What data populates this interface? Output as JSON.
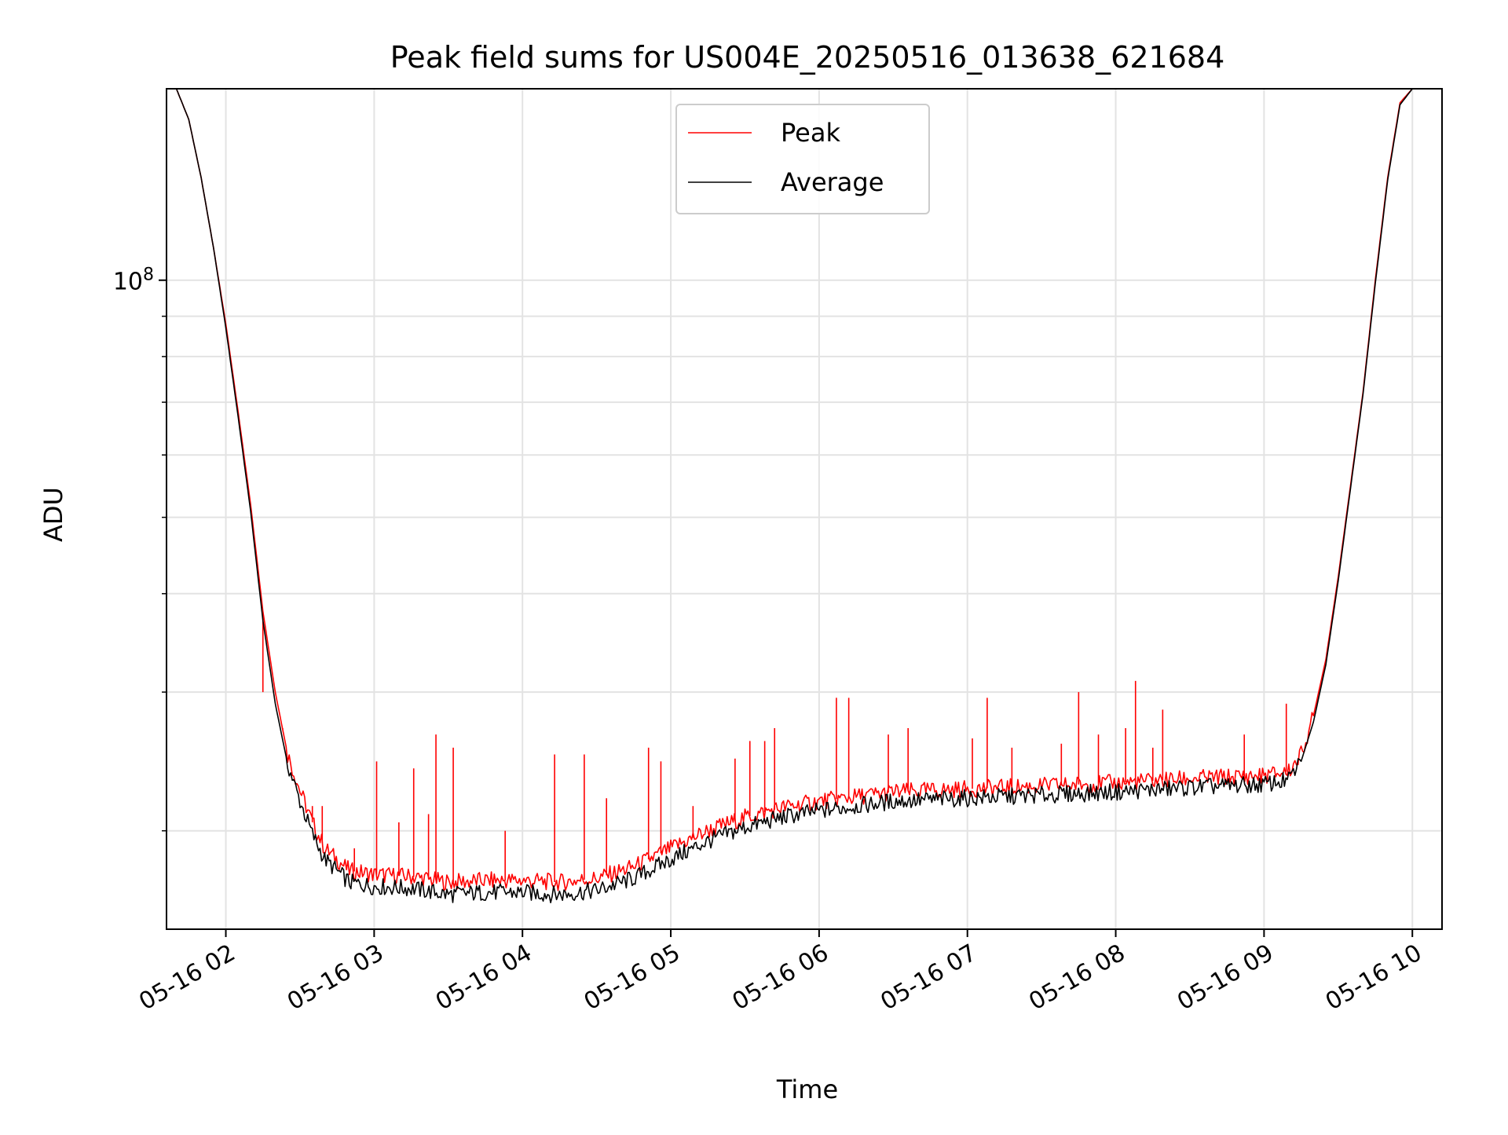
{
  "chart_data": {
    "type": "line",
    "title": "Peak field sums for US004E_20250516_013638_621684",
    "xlabel": "Time",
    "ylabel": "ADU",
    "y_scale": "log",
    "grid": true,
    "legend_position": "top-center",
    "x_range": [
      "2025-05-16 01:36",
      "2025-05-16 10:12"
    ],
    "ylim": [
      15000000,
      175000000
    ],
    "x_ticks": [
      {
        "value": "2025-05-16 02:00",
        "label": "05-16 02"
      },
      {
        "value": "2025-05-16 03:00",
        "label": "05-16 03"
      },
      {
        "value": "2025-05-16 04:00",
        "label": "05-16 04"
      },
      {
        "value": "2025-05-16 05:00",
        "label": "05-16 05"
      },
      {
        "value": "2025-05-16 06:00",
        "label": "05-16 06"
      },
      {
        "value": "2025-05-16 07:00",
        "label": "05-16 07"
      },
      {
        "value": "2025-05-16 08:00",
        "label": "05-16 08"
      },
      {
        "value": "2025-05-16 09:00",
        "label": "05-16 09"
      },
      {
        "value": "2025-05-16 10:00",
        "label": "05-16 10"
      }
    ],
    "y_ticks": [
      {
        "value": 100000000,
        "label": "10",
        "exponent": "8"
      }
    ],
    "y_minor_ticks": [
      20000000,
      30000000,
      40000000,
      50000000,
      60000000,
      70000000,
      80000000,
      90000000
    ],
    "series": [
      {
        "name": "Peak",
        "color": "#ff0000",
        "points": [
          [
            "2025-05-16 01:36",
            175000000
          ],
          [
            "2025-05-16 01:40",
            175000000
          ],
          [
            "2025-05-16 01:45",
            160000000
          ],
          [
            "2025-05-16 01:50",
            135000000
          ],
          [
            "2025-05-16 01:55",
            110000000
          ],
          [
            "2025-05-16 02:00",
            88000000
          ],
          [
            "2025-05-16 02:05",
            68000000
          ],
          [
            "2025-05-16 02:10",
            52000000
          ],
          [
            "2025-05-16 02:15",
            38000000
          ],
          [
            "2025-05-16 02:20",
            30000000
          ],
          [
            "2025-05-16 02:25",
            25000000
          ],
          [
            "2025-05-16 02:30",
            22500000
          ],
          [
            "2025-05-16 02:35",
            20500000
          ],
          [
            "2025-05-16 02:40",
            19000000
          ],
          [
            "2025-05-16 02:50",
            17800000
          ],
          [
            "2025-05-16 03:00",
            17600000
          ],
          [
            "2025-05-16 03:15",
            17500000
          ],
          [
            "2025-05-16 03:30",
            17200000
          ],
          [
            "2025-05-16 03:45",
            17300000
          ],
          [
            "2025-05-16 04:00",
            17300000
          ],
          [
            "2025-05-16 04:15",
            17200000
          ],
          [
            "2025-05-16 04:30",
            17400000
          ],
          [
            "2025-05-16 04:45",
            18000000
          ],
          [
            "2025-05-16 05:00",
            19000000
          ],
          [
            "2025-05-16 05:15",
            20000000
          ],
          [
            "2025-05-16 05:30",
            20800000
          ],
          [
            "2025-05-16 05:45",
            21400000
          ],
          [
            "2025-05-16 06:00",
            21800000
          ],
          [
            "2025-05-16 06:15",
            22100000
          ],
          [
            "2025-05-16 06:30",
            22400000
          ],
          [
            "2025-05-16 06:45",
            22500000
          ],
          [
            "2025-05-16 07:00",
            22600000
          ],
          [
            "2025-05-16 07:30",
            22800000
          ],
          [
            "2025-05-16 08:00",
            23000000
          ],
          [
            "2025-05-16 08:30",
            23300000
          ],
          [
            "2025-05-16 09:00",
            23500000
          ],
          [
            "2025-05-16 09:10",
            23800000
          ],
          [
            "2025-05-16 09:15",
            25000000
          ],
          [
            "2025-05-16 09:20",
            28000000
          ],
          [
            "2025-05-16 09:25",
            33000000
          ],
          [
            "2025-05-16 09:30",
            42000000
          ],
          [
            "2025-05-16 09:35",
            55000000
          ],
          [
            "2025-05-16 09:40",
            72000000
          ],
          [
            "2025-05-16 09:45",
            100000000
          ],
          [
            "2025-05-16 09:50",
            135000000
          ],
          [
            "2025-05-16 09:55",
            168000000
          ],
          [
            "2025-05-16 10:00",
            175000000
          ],
          [
            "2025-05-16 10:12",
            175000000
          ]
        ],
        "spikes": [
          [
            "2025-05-16 02:15",
            30000000
          ],
          [
            "2025-05-16 02:23",
            27000000
          ],
          [
            "2025-05-16 02:35",
            21500000
          ],
          [
            "2025-05-16 02:39",
            21500000
          ],
          [
            "2025-05-16 02:52",
            19000000
          ],
          [
            "2025-05-16 03:01",
            24500000
          ],
          [
            "2025-05-16 03:10",
            20500000
          ],
          [
            "2025-05-16 03:16",
            24000000
          ],
          [
            "2025-05-16 03:22",
            21000000
          ],
          [
            "2025-05-16 03:25",
            26500000
          ],
          [
            "2025-05-16 03:32",
            25500000
          ],
          [
            "2025-05-16 03:53",
            20000000
          ],
          [
            "2025-05-16 04:13",
            25000000
          ],
          [
            "2025-05-16 04:25",
            25000000
          ],
          [
            "2025-05-16 04:34",
            22000000
          ],
          [
            "2025-05-16 04:51",
            25500000
          ],
          [
            "2025-05-16 04:56",
            24500000
          ],
          [
            "2025-05-16 05:09",
            21500000
          ],
          [
            "2025-05-16 05:26",
            24700000
          ],
          [
            "2025-05-16 05:32",
            26000000
          ],
          [
            "2025-05-16 05:38",
            26000000
          ],
          [
            "2025-05-16 05:42",
            27000000
          ],
          [
            "2025-05-16 06:07",
            29500000
          ],
          [
            "2025-05-16 06:12",
            29500000
          ],
          [
            "2025-05-16 06:28",
            26500000
          ],
          [
            "2025-05-16 06:36",
            27000000
          ],
          [
            "2025-05-16 07:02",
            26200000
          ],
          [
            "2025-05-16 07:08",
            29500000
          ],
          [
            "2025-05-16 07:18",
            25500000
          ],
          [
            "2025-05-16 07:38",
            25800000
          ],
          [
            "2025-05-16 07:45",
            30000000
          ],
          [
            "2025-05-16 07:53",
            26500000
          ],
          [
            "2025-05-16 08:04",
            27000000
          ],
          [
            "2025-05-16 08:08",
            31000000
          ],
          [
            "2025-05-16 08:15",
            25500000
          ],
          [
            "2025-05-16 08:19",
            28500000
          ],
          [
            "2025-05-16 08:52",
            26500000
          ],
          [
            "2025-05-16 09:09",
            29000000
          ]
        ]
      },
      {
        "name": "Average",
        "color": "#000000",
        "points": [
          [
            "2025-05-16 01:36",
            175000000
          ],
          [
            "2025-05-16 01:40",
            175000000
          ],
          [
            "2025-05-16 01:45",
            160000000
          ],
          [
            "2025-05-16 01:50",
            135000000
          ],
          [
            "2025-05-16 01:55",
            110000000
          ],
          [
            "2025-05-16 02:00",
            87000000
          ],
          [
            "2025-05-16 02:05",
            67000000
          ],
          [
            "2025-05-16 02:10",
            51000000
          ],
          [
            "2025-05-16 02:15",
            37000000
          ],
          [
            "2025-05-16 02:20",
            29000000
          ],
          [
            "2025-05-16 02:25",
            24300000
          ],
          [
            "2025-05-16 02:30",
            21800000
          ],
          [
            "2025-05-16 02:35",
            19800000
          ],
          [
            "2025-05-16 02:40",
            18400000
          ],
          [
            "2025-05-16 02:50",
            17200000
          ],
          [
            "2025-05-16 03:00",
            17000000
          ],
          [
            "2025-05-16 03:15",
            16900000
          ],
          [
            "2025-05-16 03:30",
            16600000
          ],
          [
            "2025-05-16 03:45",
            16700000
          ],
          [
            "2025-05-16 04:00",
            16700000
          ],
          [
            "2025-05-16 04:15",
            16600000
          ],
          [
            "2025-05-16 04:30",
            16800000
          ],
          [
            "2025-05-16 04:45",
            17400000
          ],
          [
            "2025-05-16 05:00",
            18400000
          ],
          [
            "2025-05-16 05:15",
            19400000
          ],
          [
            "2025-05-16 05:30",
            20200000
          ],
          [
            "2025-05-16 05:45",
            20800000
          ],
          [
            "2025-05-16 06:00",
            21200000
          ],
          [
            "2025-05-16 06:15",
            21500000
          ],
          [
            "2025-05-16 06:30",
            21800000
          ],
          [
            "2025-05-16 06:45",
            21900000
          ],
          [
            "2025-05-16 07:00",
            22000000
          ],
          [
            "2025-05-16 07:30",
            22200000
          ],
          [
            "2025-05-16 08:00",
            22400000
          ],
          [
            "2025-05-16 08:30",
            22700000
          ],
          [
            "2025-05-16 09:00",
            22900000
          ],
          [
            "2025-05-16 09:10",
            23200000
          ],
          [
            "2025-05-16 09:15",
            24500000
          ],
          [
            "2025-05-16 09:20",
            27500000
          ],
          [
            "2025-05-16 09:25",
            32500000
          ],
          [
            "2025-05-16 09:30",
            41500000
          ],
          [
            "2025-05-16 09:35",
            54500000
          ],
          [
            "2025-05-16 09:40",
            71500000
          ],
          [
            "2025-05-16 09:45",
            99000000
          ],
          [
            "2025-05-16 09:50",
            134000000
          ],
          [
            "2025-05-16 09:55",
            167000000
          ],
          [
            "2025-05-16 10:00",
            175000000
          ],
          [
            "2025-05-16 10:12",
            175000000
          ]
        ]
      }
    ]
  }
}
